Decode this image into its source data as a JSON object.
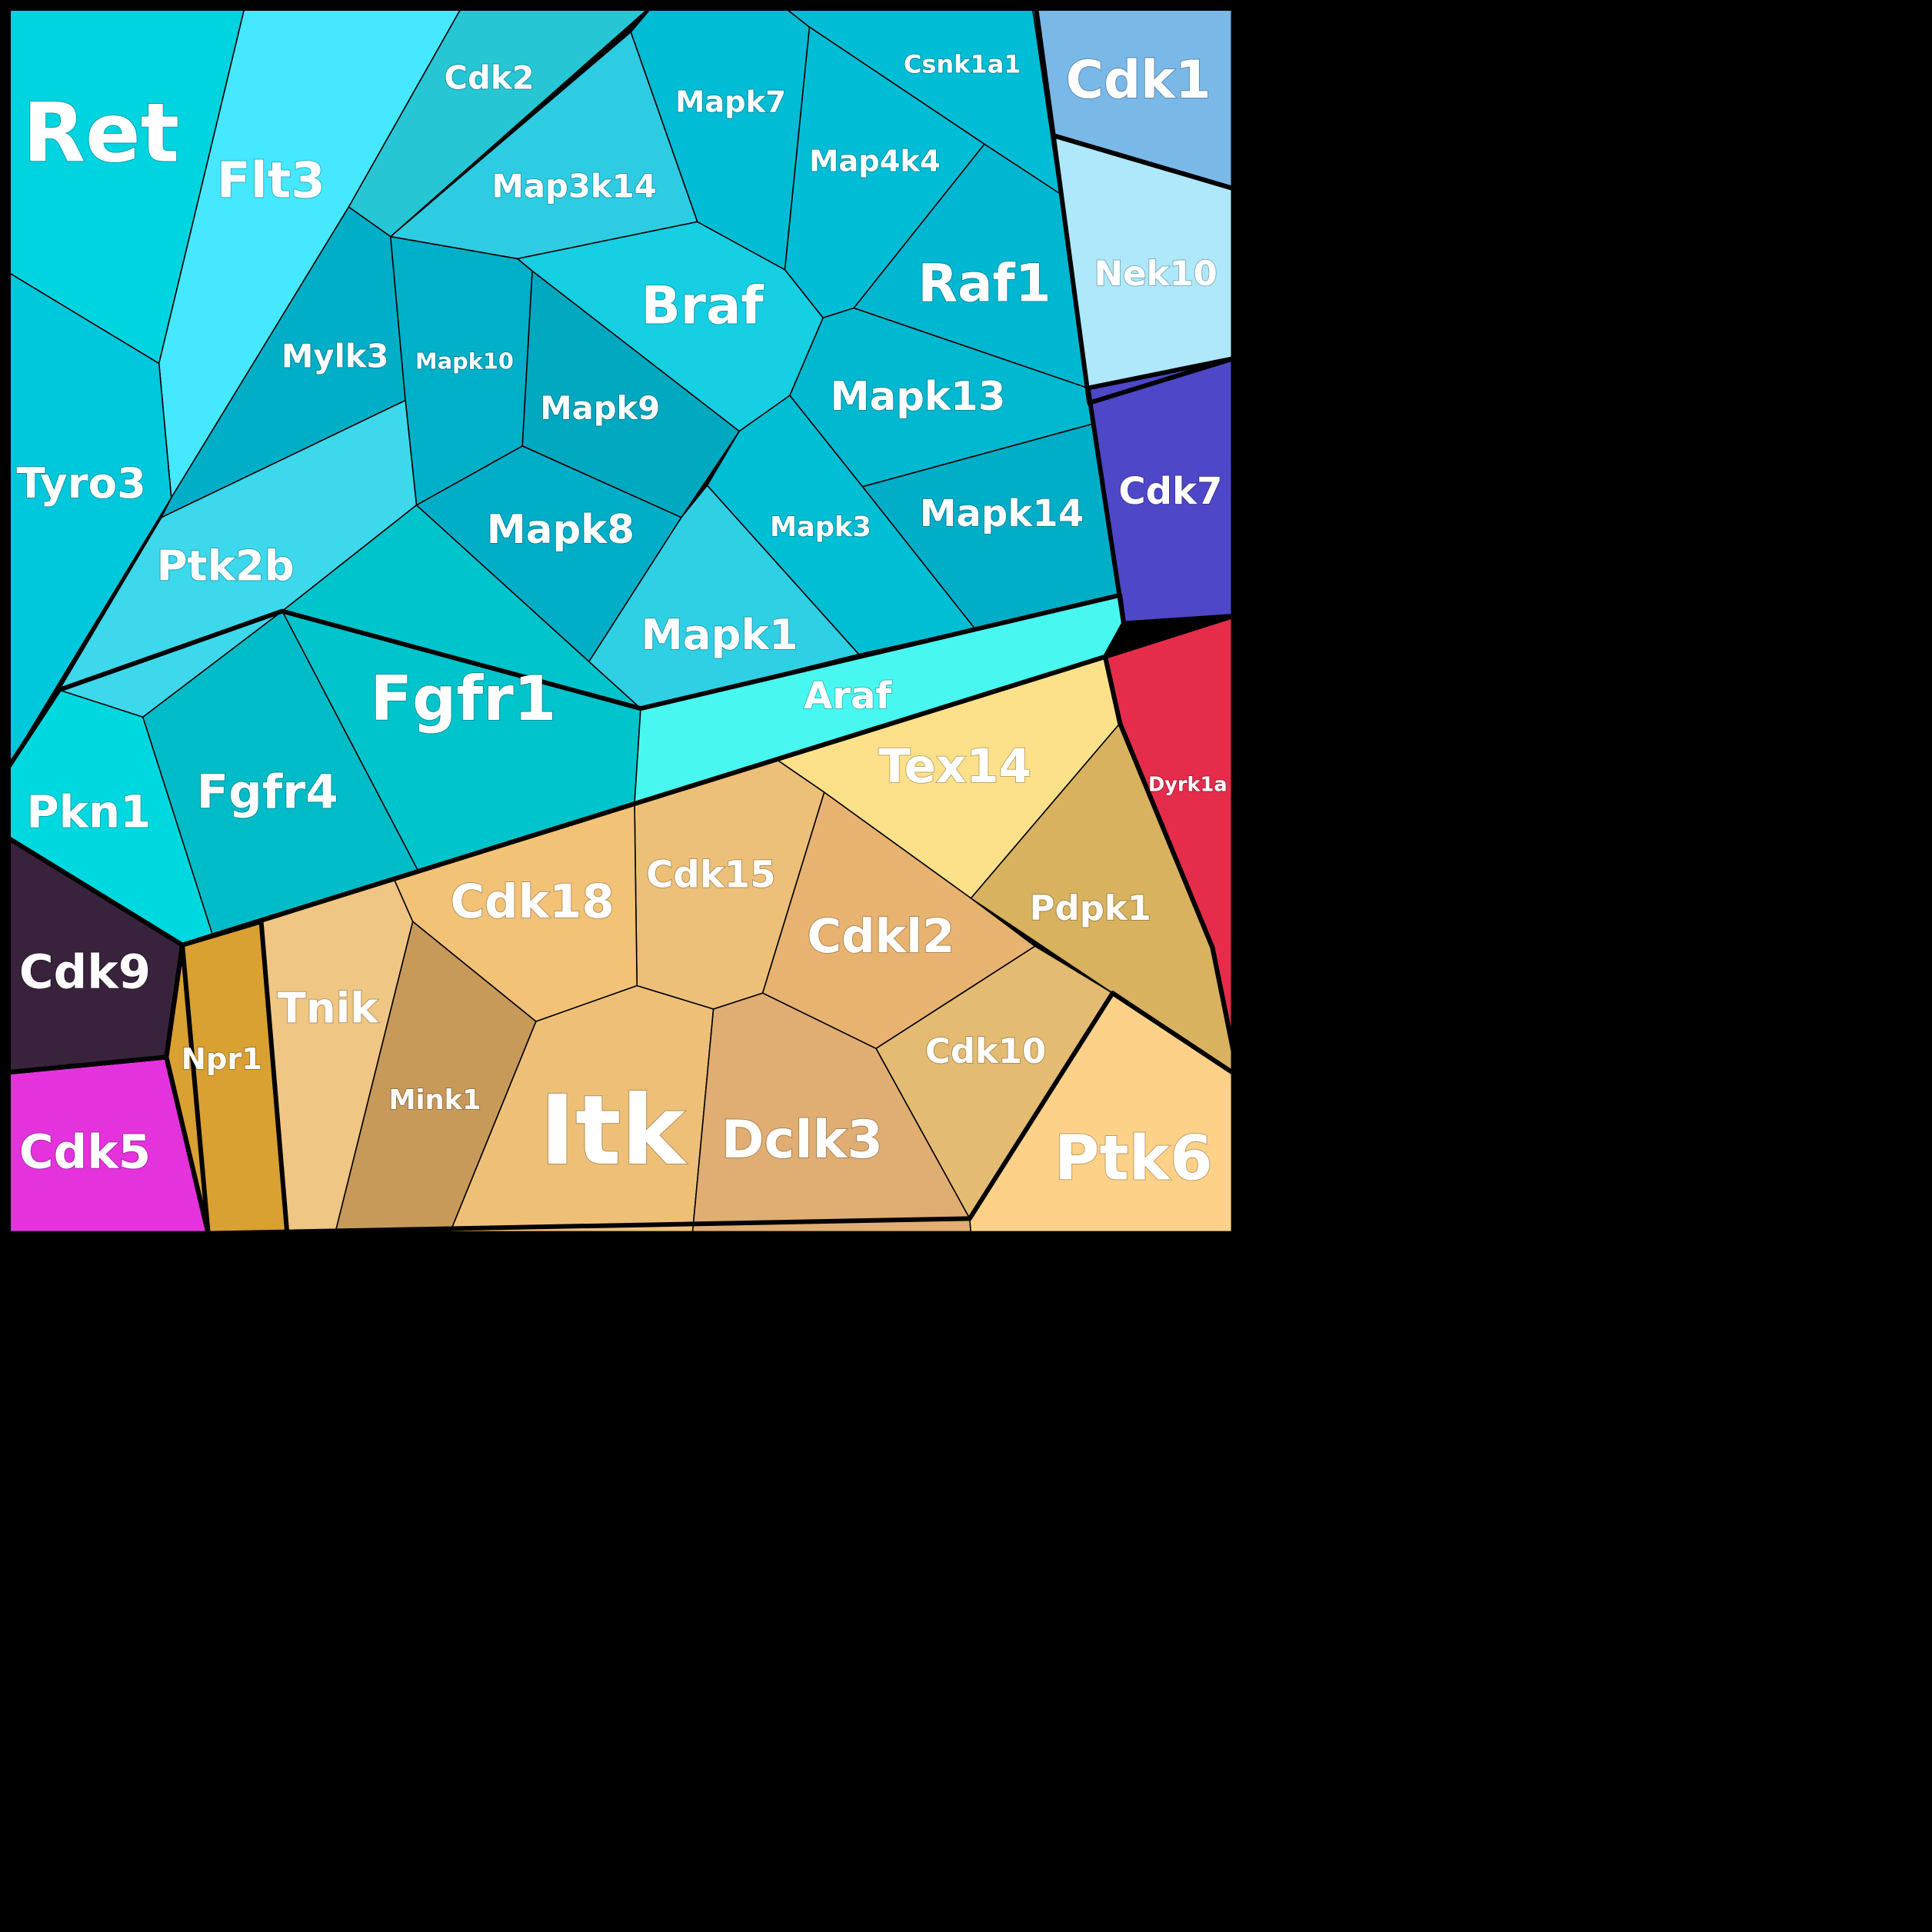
{
  "cells": [
    {
      "label": "Ret",
      "color": "#00d4e0"
    },
    {
      "label": "Flt3",
      "color": "#45e8ff"
    },
    {
      "label": "Cdk2",
      "color": "#27c6d4"
    },
    {
      "label": "Mapk7",
      "color": "#00bcd4"
    },
    {
      "label": "Csnk1a1",
      "color": "#00bdd6"
    },
    {
      "label": "Cdk1",
      "color": "#7ab8e8"
    },
    {
      "label": "Map3k14",
      "color": "#2ecce3"
    },
    {
      "label": "Map4k4",
      "color": "#00bdd6"
    },
    {
      "label": "Nek10",
      "color": "#aee8fa"
    },
    {
      "label": "Braf",
      "color": "#16cfe2"
    },
    {
      "label": "Raf1",
      "color": "#00b7d2"
    },
    {
      "label": "Tyro3",
      "color": "#00c8dc"
    },
    {
      "label": "Mylk3",
      "color": "#00aec8"
    },
    {
      "label": "Mapk10",
      "color": "#00b0c8"
    },
    {
      "label": "Mapk9",
      "color": "#00a8c0"
    },
    {
      "label": "Mapk13",
      "color": "#00b8d0"
    },
    {
      "label": "Cdk7",
      "color": "#4e47c8"
    },
    {
      "label": "Mapk14",
      "color": "#00aec8"
    },
    {
      "label": "Mapk3",
      "color": "#00bed4"
    },
    {
      "label": "Mapk8",
      "color": "#00aec8"
    },
    {
      "label": "Ptk2b",
      "color": "#3dd8ec"
    },
    {
      "label": "Mapk1",
      "color": "#30d0e4"
    },
    {
      "label": "Fgfr1",
      "color": "#00c4cc"
    },
    {
      "label": "Araf",
      "color": "#48f8f0"
    },
    {
      "label": "Tex14",
      "color": "#fde18a"
    },
    {
      "label": "Dyrk1a",
      "color": "#e52d4b"
    },
    {
      "label": "Pkn1",
      "color": "#00d8e0"
    },
    {
      "label": "Fgfr4",
      "color": "#00bcc8"
    },
    {
      "label": "Cdk15",
      "color": "#ecc078"
    },
    {
      "label": "Cdk18",
      "color": "#f2c277"
    },
    {
      "label": "Pdpk1",
      "color": "#d8b25f"
    },
    {
      "label": "Cdkl2",
      "color": "#e8b370"
    },
    {
      "label": "Cdk9",
      "color": "#38223c"
    },
    {
      "label": "Tnik",
      "color": "#f0c684"
    },
    {
      "label": "Npr1",
      "color": "#d9a032"
    },
    {
      "label": "Cdk10",
      "color": "#e4bb72"
    },
    {
      "label": "Mink1",
      "color": "#c89a5a"
    },
    {
      "label": "Cdk5",
      "color": "#e433dc"
    },
    {
      "label": "Itk",
      "color": "#eec077"
    },
    {
      "label": "Dclk3",
      "color": "#e0ae72"
    },
    {
      "label": "Ptk6",
      "color": "#fdd288"
    }
  ]
}
